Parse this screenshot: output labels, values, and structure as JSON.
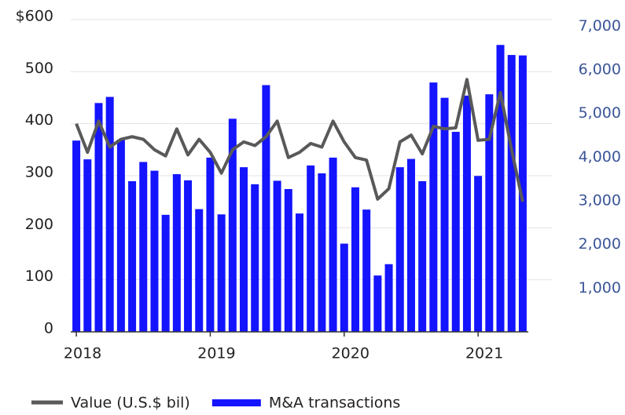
{
  "chart_data": {
    "type": "bar-line",
    "categories": [
      "2018",
      null,
      null,
      null,
      null,
      null,
      null,
      null,
      null,
      null,
      null,
      null,
      "2019",
      null,
      null,
      null,
      null,
      null,
      null,
      null,
      null,
      null,
      null,
      null,
      "2020",
      null,
      null,
      null,
      null,
      null,
      null,
      null,
      null,
      null,
      null,
      null,
      "2021",
      null,
      null,
      null,
      null
    ],
    "series": [
      {
        "name": "Value (U.S.$ bil)",
        "color": "#595959",
        "kind": "line",
        "axis": "y",
        "values": [
          400,
          345,
          405,
          355,
          370,
          375,
          370,
          350,
          338,
          390,
          340,
          370,
          345,
          305,
          350,
          365,
          358,
          375,
          405,
          335,
          345,
          362,
          355,
          405,
          365,
          335,
          330,
          255,
          275,
          365,
          378,
          342,
          395,
          390,
          392,
          485,
          368,
          370,
          460,
          350,
          250
        ]
      },
      {
        "name": "M&A transactions",
        "color": "#1414ff",
        "kind": "bar",
        "axis": "y2",
        "values": [
          4380,
          3950,
          5240,
          5380,
          4400,
          3450,
          3890,
          3690,
          2680,
          3610,
          3470,
          2810,
          3990,
          2690,
          4880,
          3770,
          3380,
          5650,
          3460,
          3270,
          2710,
          3810,
          3630,
          3990,
          2020,
          3310,
          2800,
          1290,
          1550,
          3770,
          3960,
          3450,
          5710,
          5360,
          4580,
          5410,
          3570,
          5440,
          6570,
          6340,
          6330
        ]
      }
    ],
    "ylim": [
      0,
      600
    ],
    "yticks": [
      0,
      100,
      200,
      300,
      400,
      500,
      {
        "value": 600,
        "label": "$600"
      }
    ],
    "y2lim": [
      0,
      7150
    ],
    "y2ticks": [
      {
        "value": 1000,
        "label": "1,000"
      },
      {
        "value": 2000,
        "label": "2,000"
      },
      {
        "value": 3000,
        "label": "3,000"
      },
      {
        "value": 4000,
        "label": "4,000"
      },
      {
        "value": 5000,
        "label": "5,000"
      },
      {
        "value": 6000,
        "label": "6,000"
      },
      {
        "value": 7000,
        "label": "7,000"
      }
    ],
    "grid": true
  }
}
